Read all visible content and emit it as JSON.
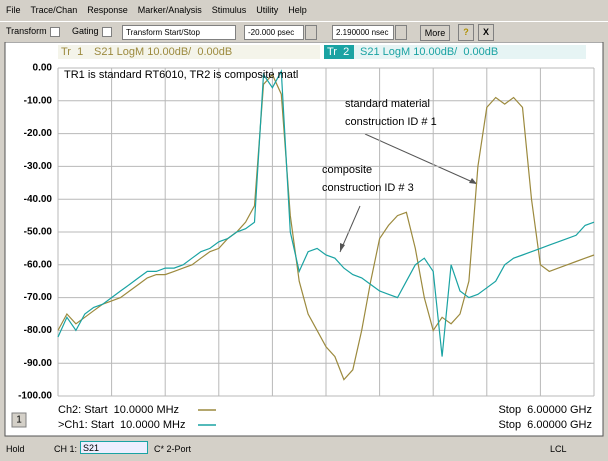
{
  "menu": [
    "File",
    "Trace/Chan",
    "Response",
    "Marker/Analysis",
    "Stimulus",
    "Utility",
    "Help"
  ],
  "toolbar": {
    "transform": "Transform",
    "gating": "Gating",
    "mode": "Transform Start/Stop",
    "start": "-20.000 psec",
    "stop": "2.190000 nsec",
    "more": "More",
    "help": "?",
    "close": "X"
  },
  "chart_data": {
    "type": "line",
    "series": [
      {
        "name": "Tr  1",
        "label": "S21 LogM 10.00dB/  0.00dB",
        "color": "#9c8a3e",
        "values": [
          -80,
          -75,
          -78,
          -76,
          -74,
          -72,
          -71,
          -70,
          -68,
          -66,
          -64,
          -63,
          -63,
          -62,
          -61,
          -60,
          -58,
          -56,
          -55,
          -52,
          -50,
          -47,
          -42,
          -5,
          -2,
          -8,
          -45,
          -65,
          -75,
          -80,
          -85,
          -88,
          -95,
          -92,
          -80,
          -65,
          -52,
          -48,
          -45,
          -44,
          -55,
          -70,
          -80,
          -76,
          -78,
          -75,
          -65,
          -30,
          -12,
          -9,
          -11,
          -9,
          -12,
          -40,
          -60,
          -62,
          -61,
          -60,
          -59,
          -58,
          -57
        ]
      },
      {
        "name": "Tr  2",
        "label": "S21 LogM 10.00dB/  0.00dB",
        "color": "#1aa3a3",
        "values": [
          -82,
          -76,
          -80,
          -75,
          -73,
          -72,
          -70,
          -68,
          -66,
          -64,
          -62,
          -62,
          -61,
          -61,
          -60,
          -58,
          -56,
          -55,
          -53,
          -52,
          -50,
          -49,
          -47,
          -2,
          -6,
          -1,
          -50,
          -62,
          -56,
          -55,
          -57,
          -58,
          -61,
          -63,
          -64,
          -66,
          -68,
          -69,
          -70,
          -65,
          -60,
          -58,
          -62,
          -88,
          -60,
          -68,
          -70,
          -69,
          -67,
          -65,
          -60,
          -58,
          -57,
          -56,
          -55,
          -54,
          -53,
          -52,
          -51,
          -48,
          -47
        ]
      }
    ],
    "ylim": [
      -100,
      0
    ],
    "yticks": [
      {
        "value": 0,
        "label": "0.00"
      },
      {
        "value": -10,
        "label": "-10.00"
      },
      {
        "value": -20,
        "label": "-20.00"
      },
      {
        "value": -30,
        "label": "-30.00"
      },
      {
        "value": -40,
        "label": "-40.00"
      },
      {
        "value": -50,
        "label": "-50.00"
      },
      {
        "value": -60,
        "label": "-60.00"
      },
      {
        "value": -70,
        "label": "-70.00"
      },
      {
        "value": -80,
        "label": "-80.00"
      },
      {
        "value": -90,
        "label": "-90.00"
      },
      {
        "value": -100,
        "label": "-100.00"
      }
    ],
    "grid": true,
    "annotations": [
      "TR1 is standard RT6010, TR2 is composite matl",
      "standard material",
      "construction ID # 1",
      "composite",
      "construction ID # 3"
    ]
  },
  "channels": [
    {
      "start": "Ch2: Start  10.0000 MHz",
      "stop": "Stop  6.00000 GHz"
    },
    {
      "start": ">Ch1: Start  10.0000 MHz",
      "stop": "Stop  6.00000 GHz"
    }
  ],
  "channel_number": "1",
  "status": {
    "mode": "Hold",
    "channel": "CH 1:",
    "param": "S21",
    "cal": "C* 2-Port",
    "remote": "LCL"
  }
}
